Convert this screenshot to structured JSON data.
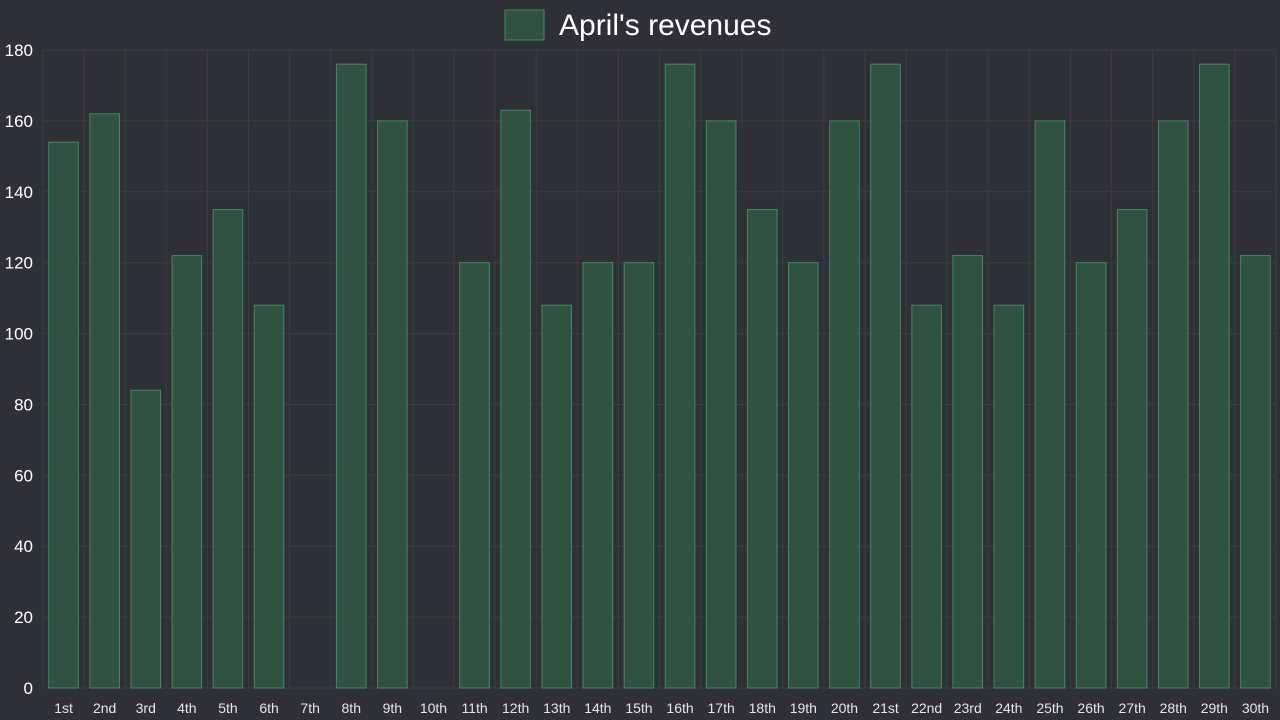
{
  "chart_data": {
    "type": "bar",
    "title": "",
    "xlabel": "",
    "ylabel": "",
    "ylim": [
      0,
      180
    ],
    "yticks": [
      0,
      20,
      40,
      60,
      80,
      100,
      120,
      140,
      160,
      180
    ],
    "grid": true,
    "legend_position": "top-center",
    "categories": [
      "1st",
      "2nd",
      "3rd",
      "4th",
      "5th",
      "6th",
      "7th",
      "8th",
      "9th",
      "10th",
      "11th",
      "12th",
      "13th",
      "14th",
      "15th",
      "16th",
      "17th",
      "18th",
      "19th",
      "20th",
      "21st",
      "22nd",
      "23rd",
      "24th",
      "25th",
      "26th",
      "27th",
      "28th",
      "29th",
      "30th"
    ],
    "series": [
      {
        "name": "April's revenues",
        "color": "#2f5242",
        "border_color": "#3f8a63",
        "values": [
          154,
          162,
          84,
          122,
          135,
          108,
          0,
          176,
          160,
          0,
          120,
          163,
          108,
          120,
          120,
          176,
          160,
          135,
          120,
          160,
          176,
          108,
          122,
          108,
          160,
          120,
          135,
          160,
          176,
          122
        ]
      }
    ]
  },
  "colors": {
    "background": "#2f3035",
    "grid": "#3b3c42",
    "bar_fill": "#2f5242",
    "bar_border": "#3f8a63"
  }
}
